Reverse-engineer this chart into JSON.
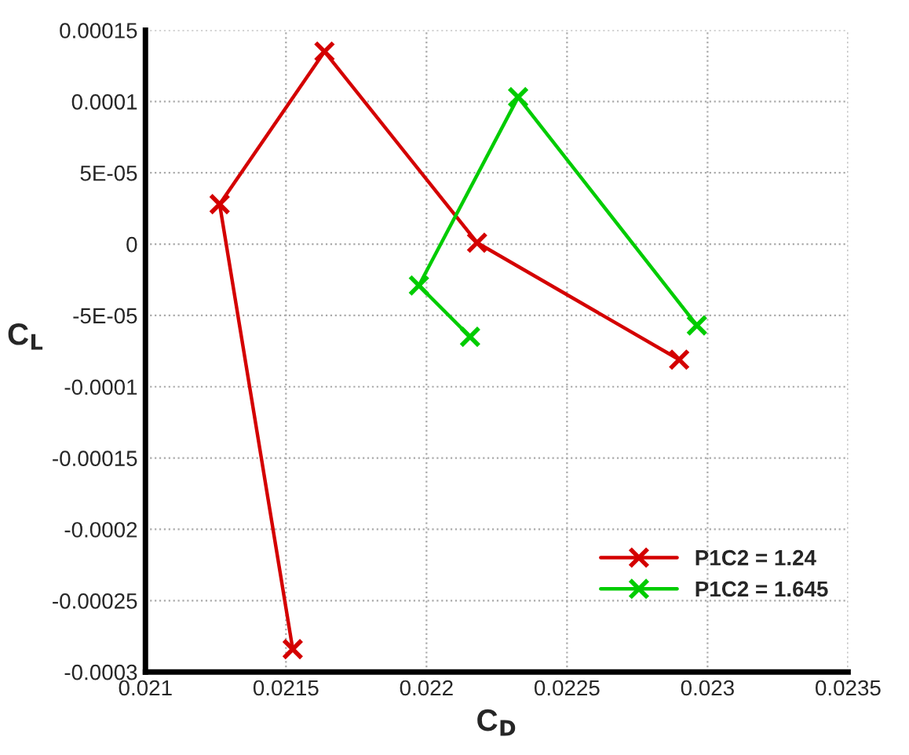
{
  "chart_data": {
    "type": "line",
    "xlabel": "C$_{D}$",
    "ylabel": "C$_{L}$",
    "series": [
      {
        "name": "P1C2 = 1.24",
        "color": "#d40000",
        "x": [
          0.021524,
          0.021264,
          0.021637,
          0.02218,
          0.022899
        ],
        "values": [
          -0.000284,
          2.8e-05,
          0.000135,
          1e-06,
          -8.1e-05
        ]
      },
      {
        "name": "P1C2 = 1.645",
        "color": "#00cc00",
        "x": [
          0.022155,
          0.021973,
          0.022326,
          0.022962
        ],
        "values": [
          -6.5e-05,
          -2.9e-05,
          0.000103,
          -5.7e-05
        ]
      }
    ],
    "xlim": [
      0.021,
      0.0235
    ],
    "ylim": [
      -0.0003,
      0.00015
    ],
    "xticks": [
      {
        "value": 0.021,
        "label": "0.021"
      },
      {
        "value": 0.0215,
        "label": "0.0215"
      },
      {
        "value": 0.022,
        "label": "0.022"
      },
      {
        "value": 0.0225,
        "label": "0.0225"
      },
      {
        "value": 0.023,
        "label": "0.023"
      },
      {
        "value": 0.0235,
        "label": "0.0235"
      }
    ],
    "yticks": [
      {
        "value": -0.0003,
        "label": "-0.0003"
      },
      {
        "value": -0.00025,
        "label": "-0.00025"
      },
      {
        "value": -0.0002,
        "label": "-0.0002"
      },
      {
        "value": -0.00015,
        "label": "-0.00015"
      },
      {
        "value": -0.0001,
        "label": "-0.0001"
      },
      {
        "value": -5e-05,
        "label": "-5E-05"
      },
      {
        "value": 0,
        "label": "0"
      },
      {
        "value": 5e-05,
        "label": "5E-05"
      },
      {
        "value": 0.0001,
        "label": "0.0001"
      },
      {
        "value": 0.00015,
        "label": "0.00015"
      }
    ],
    "grid": true,
    "legend": "bottom right",
    "marker": "cross",
    "line_style": "solid"
  }
}
